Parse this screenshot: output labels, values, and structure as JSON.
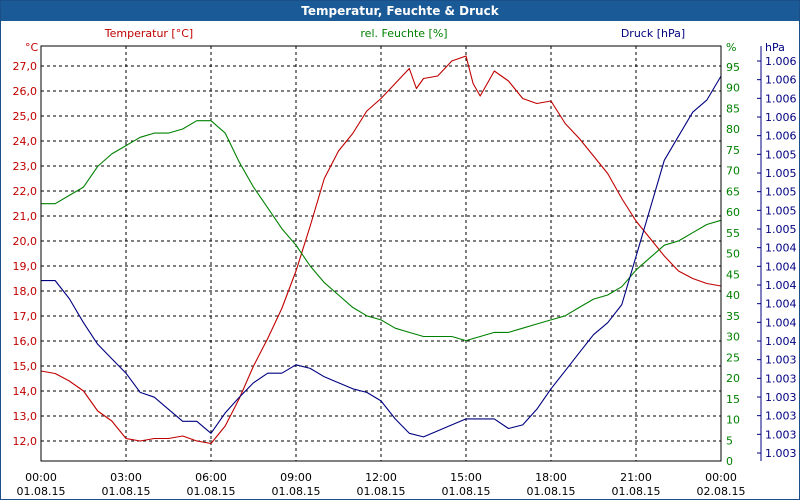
{
  "window": {
    "title": "Temperatur, Feuchte & Druck"
  },
  "chart_data": {
    "type": "line",
    "title": "Temperatur, Feuchte & Druck",
    "grid": true,
    "x_tick_labels": [
      [
        "00:00",
        "01.08.15"
      ],
      [
        "03:00",
        "01.08.15"
      ],
      [
        "06:00",
        "01.08.15"
      ],
      [
        "09:00",
        "01.08.15"
      ],
      [
        "12:00",
        "01.08.15"
      ],
      [
        "15:00",
        "01.08.15"
      ],
      [
        "18:00",
        "01.08.15"
      ],
      [
        "21:00",
        "01.08.15"
      ],
      [
        "00:00",
        "02.08.15"
      ]
    ],
    "axes": {
      "temperature": {
        "unit": "°C",
        "label": "Temperatur [°C]",
        "color": "#c00000",
        "ylim": [
          11.2,
          27.8
        ],
        "ticks": [
          "12,0",
          "13,0",
          "14,0",
          "15,0",
          "16,0",
          "17,0",
          "18,0",
          "19,0",
          "20,0",
          "21,0",
          "22,0",
          "23,0",
          "24,0",
          "25,0",
          "26,0",
          "27,0"
        ]
      },
      "humidity": {
        "unit": "%",
        "label": "rel. Feuchte [%]",
        "color": "#008000",
        "ylim": [
          0,
          100
        ],
        "ticks": [
          "0",
          "5",
          "10",
          "15",
          "20",
          "25",
          "30",
          "35",
          "40",
          "45",
          "50",
          "55",
          "60",
          "65",
          "70",
          "75",
          "80",
          "85",
          "90",
          "95"
        ]
      },
      "pressure": {
        "unit": "hPa",
        "label": "Druck [hPa]",
        "color": "#000080",
        "ticks": [
          "1.003",
          "1.003",
          "1.003",
          "1.003",
          "1.003",
          "1.003",
          "1.004",
          "1.004",
          "1.004",
          "1.004",
          "1.004",
          "1.004",
          "1.005",
          "1.005",
          "1.005",
          "1.005",
          "1.005",
          "1.006",
          "1.006",
          "1.006",
          "1.006",
          "1.006"
        ]
      }
    },
    "series": [
      {
        "name": "Temperatur [°C]",
        "axis": "temperature",
        "color": "#c00000",
        "x": [
          0,
          0.5,
          1,
          1.5,
          2,
          2.5,
          3,
          3.5,
          4,
          4.5,
          5,
          5.5,
          6,
          6.5,
          7,
          7.5,
          8,
          8.5,
          9,
          9.5,
          10,
          10.5,
          11,
          11.5,
          12,
          12.5,
          13,
          13.25,
          13.5,
          14,
          14.5,
          15,
          15.25,
          15.5,
          16,
          16.5,
          17,
          17.5,
          18,
          18.5,
          19,
          19.5,
          20,
          20.5,
          21,
          21.5,
          22,
          22.5,
          23,
          23.5,
          24
        ],
        "y": [
          14.8,
          14.7,
          14.4,
          14.0,
          13.2,
          12.8,
          12.1,
          12.0,
          12.1,
          12.1,
          12.2,
          12.0,
          11.9,
          12.6,
          13.7,
          15.0,
          16.1,
          17.3,
          18.8,
          20.6,
          22.5,
          23.6,
          24.3,
          25.2,
          25.7,
          26.3,
          26.9,
          26.1,
          26.5,
          26.6,
          27.2,
          27.4,
          26.3,
          25.8,
          26.8,
          26.4,
          25.7,
          25.5,
          25.6,
          24.7,
          24.1,
          23.4,
          22.7,
          21.7,
          20.8,
          20.1,
          19.4,
          18.8,
          18.5,
          18.3,
          18.2
        ]
      },
      {
        "name": "rel. Feuchte [%]",
        "axis": "humidity",
        "color": "#008000",
        "x": [
          0,
          0.5,
          1,
          1.5,
          2,
          2.5,
          3,
          3.5,
          4,
          4.5,
          5,
          5.5,
          6,
          6.5,
          7,
          7.5,
          8,
          8.5,
          9,
          9.5,
          10,
          10.5,
          11,
          11.5,
          12,
          12.5,
          13,
          13.5,
          14,
          14.5,
          15,
          15.5,
          16,
          16.5,
          17,
          17.5,
          18,
          18.5,
          19,
          19.5,
          20,
          20.5,
          21,
          21.5,
          22,
          22.5,
          23,
          23.5,
          24
        ],
        "y": [
          62,
          62,
          64,
          66,
          71,
          74,
          76,
          78,
          79,
          79,
          80,
          82,
          82,
          79,
          72,
          66,
          61,
          56,
          52,
          47,
          43,
          40,
          37,
          35,
          34,
          32,
          31,
          30,
          30,
          30,
          29,
          30,
          31,
          31,
          32,
          33,
          34,
          35,
          37,
          39,
          40,
          42,
          46,
          49,
          52,
          53,
          55,
          57,
          58
        ]
      },
      {
        "name": "Druck [hPa]",
        "axis": "pressure",
        "color": "#000080",
        "x": [
          0,
          0.5,
          1,
          1.5,
          2,
          2.5,
          3,
          3.5,
          4,
          4.5,
          5,
          5.5,
          6,
          6.5,
          7,
          7.5,
          8,
          8.5,
          9,
          9.5,
          10,
          10.5,
          11,
          11.5,
          12,
          12.5,
          13,
          13.5,
          14,
          14.5,
          15,
          15.5,
          16,
          16.5,
          17,
          17.5,
          18,
          18.5,
          19,
          19.5,
          20,
          20.5,
          21,
          21.5,
          22,
          22.5,
          23,
          23.5,
          24
        ],
        "y": [
          1004.35,
          1004.35,
          1004.2,
          1004.0,
          1003.82,
          1003.7,
          1003.58,
          1003.42,
          1003.38,
          1003.28,
          1003.18,
          1003.18,
          1003.08,
          1003.25,
          1003.38,
          1003.5,
          1003.58,
          1003.58,
          1003.65,
          1003.62,
          1003.55,
          1003.5,
          1003.45,
          1003.42,
          1003.35,
          1003.2,
          1003.08,
          1003.05,
          1003.1,
          1003.15,
          1003.2,
          1003.2,
          1003.2,
          1003.12,
          1003.15,
          1003.28,
          1003.45,
          1003.6,
          1003.75,
          1003.9,
          1004.0,
          1004.15,
          1004.55,
          1004.95,
          1005.35,
          1005.55,
          1005.75,
          1005.85,
          1006.05
        ]
      }
    ]
  }
}
